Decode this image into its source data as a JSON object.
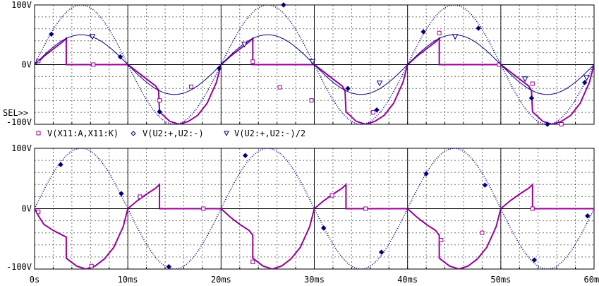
{
  "selection_marker": "SEL>>",
  "colors": {
    "trace1": "#990099",
    "trace2": "#00007f",
    "trace3": "#000080",
    "grid": "#000000",
    "axis": "#000000"
  },
  "chart_data": [
    {
      "type": "line",
      "xlabel": "",
      "ylabel": "",
      "xlim": [
        0,
        60
      ],
      "ylim": [
        -100,
        100
      ],
      "yticks": [
        {
          "v": 100,
          "label": "100V"
        },
        {
          "v": 0,
          "label": "0V"
        },
        {
          "v": -100,
          "label": "-100V"
        }
      ],
      "grid": true,
      "legend": "below plot",
      "series": [
        {
          "name": "V(X11:A,X11:K)",
          "marker": "square",
          "color": "#990099",
          "x": [
            0,
            0.5,
            1,
            2,
            3,
            3.4,
            3.4,
            6,
            9,
            10,
            11,
            12,
            13,
            13.3,
            13.4,
            14.5,
            15.5,
            16.5,
            17.5,
            18.5,
            19.5,
            20,
            21,
            22,
            23,
            23.4,
            23.4,
            26,
            29,
            30,
            31,
            32,
            33,
            33.3,
            33.4,
            34.5,
            35.5,
            36.5,
            37.5,
            38.5,
            39.5,
            40,
            41,
            42,
            43,
            43.4,
            43.4,
            46,
            49,
            50,
            51,
            52,
            53,
            53.3,
            53.4,
            54.5,
            55.5,
            56.5,
            57.5,
            58.5,
            59.5,
            60
          ],
          "y": [
            0,
            6,
            14,
            26,
            38,
            44,
            0,
            0,
            0,
            0,
            -12,
            -24,
            -36,
            -44,
            -79,
            -95,
            -100,
            -95,
            -85,
            -65,
            -30,
            0,
            14,
            26,
            38,
            44,
            0,
            0,
            0,
            0,
            -12,
            -24,
            -36,
            -44,
            -79,
            -95,
            -100,
            -95,
            -85,
            -65,
            -30,
            0,
            14,
            26,
            38,
            44,
            0,
            0,
            0,
            0,
            -12,
            -24,
            -36,
            -44,
            -79,
            -95,
            -100,
            -95,
            -85,
            -65,
            -30,
            0
          ],
          "markers": [
            [
              0.4,
              6
            ],
            [
              6.3,
              0
            ],
            [
              13.4,
              -60
            ],
            [
              16.8,
              -37
            ],
            [
              23.4,
              5
            ],
            [
              26.3,
              -38
            ],
            [
              29.7,
              -60
            ],
            [
              36.3,
              -80
            ],
            [
              43.4,
              53
            ],
            [
              49.8,
              0
            ],
            [
              53.4,
              -32
            ],
            [
              56.5,
              -100
            ]
          ]
        },
        {
          "name": "V(U2:+,U2:-)",
          "marker": "diamond",
          "color": "#00007f",
          "style": "dotted",
          "formula": "100*sin(2*pi*x/20)",
          "markers": [
            [
              1.8,
              51
            ],
            [
              9.2,
              13
            ],
            [
              13.4,
              -79
            ],
            [
              19.8,
              -6
            ],
            [
              26.7,
              100
            ],
            [
              33.6,
              -40
            ],
            [
              36.7,
              -76
            ],
            [
              41.7,
              55
            ],
            [
              47.6,
              61
            ],
            [
              53.3,
              -56
            ],
            [
              55.0,
              -100
            ],
            [
              59.0,
              -30
            ]
          ]
        },
        {
          "name": "V(U2:+,U2:-)/2",
          "marker": "triangle",
          "color": "#000080",
          "formula": "50*sin(2*pi*x/20)",
          "markers": [
            [
              6.2,
              47
            ],
            [
              22.5,
              34
            ],
            [
              29.8,
              5
            ],
            [
              37.0,
              -31
            ],
            [
              45.1,
              47
            ],
            [
              52.6,
              -24
            ],
            [
              59.2,
              -22
            ]
          ]
        }
      ]
    },
    {
      "type": "line",
      "xlabel": "",
      "ylabel": "",
      "xlim": [
        0,
        60
      ],
      "ylim": [
        -100,
        100
      ],
      "yticks": [
        {
          "v": 100,
          "label": "100V"
        },
        {
          "v": 0,
          "label": "0V"
        },
        {
          "v": -100,
          "label": "-100V"
        }
      ],
      "xticks": [
        {
          "v": 0,
          "label": "0s"
        },
        {
          "v": 10,
          "label": "10ms"
        },
        {
          "v": 20,
          "label": "20ms"
        },
        {
          "v": 30,
          "label": "30ms"
        },
        {
          "v": 40,
          "label": "40ms"
        },
        {
          "v": 50,
          "label": "50ms"
        },
        {
          "v": 60,
          "label": "60ms"
        }
      ],
      "grid": true,
      "series": [
        {
          "marker": "square",
          "color": "#990099",
          "x": [
            0,
            0.5,
            1,
            2,
            3,
            3.4,
            3.4,
            4.5,
            5.5,
            6.5,
            7.5,
            8.5,
            9.5,
            10,
            11,
            12,
            13,
            13.4,
            13.4,
            16,
            19,
            20,
            21,
            22,
            23,
            23.4,
            23.4,
            24.5,
            25.5,
            26.5,
            27.5,
            28.5,
            29.5,
            30,
            31,
            32,
            33,
            33.4,
            33.4,
            36,
            39,
            40,
            41,
            42,
            43,
            43.4,
            43.4,
            44.5,
            45.5,
            46.5,
            47.5,
            48.5,
            49.5,
            50,
            51,
            52,
            53,
            53.4,
            53.4,
            56,
            59,
            60
          ],
          "y": [
            0,
            -14,
            -26,
            -36,
            -44,
            -47,
            -82,
            -95,
            -100,
            -95,
            -83,
            -64,
            -30,
            0,
            13,
            24,
            34,
            40,
            0,
            0,
            0,
            0,
            -14,
            -26,
            -36,
            -44,
            -82,
            -95,
            -100,
            -95,
            -83,
            -64,
            -30,
            0,
            13,
            24,
            34,
            40,
            0,
            0,
            0,
            0,
            -14,
            -26,
            -36,
            -44,
            -82,
            -95,
            -100,
            -95,
            -83,
            -64,
            -30,
            0,
            13,
            24,
            34,
            40,
            0,
            0,
            0,
            0
          ],
          "markers": [
            [
              0.4,
              -5
            ],
            [
              6.1,
              -95
            ],
            [
              11.3,
              20
            ],
            [
              18.1,
              0
            ],
            [
              23.4,
              -88
            ],
            [
              31.9,
              22
            ],
            [
              35.5,
              0
            ],
            [
              43.6,
              -52
            ],
            [
              48.0,
              -40
            ],
            [
              53.4,
              0
            ]
          ]
        },
        {
          "marker": "diamond",
          "color": "#00007f",
          "style": "dotted",
          "formula": "100*sin(2*pi*x/20)",
          "markers": [
            [
              2.8,
              73
            ],
            [
              9.3,
              25
            ],
            [
              14.4,
              -96
            ],
            [
              22.6,
              88
            ],
            [
              31.0,
              -32
            ],
            [
              37.2,
              -72
            ],
            [
              42.0,
              58
            ],
            [
              48.3,
              39
            ],
            [
              53.6,
              -85
            ],
            [
              59.3,
              -12
            ]
          ]
        }
      ]
    }
  ],
  "legend": [
    {
      "label": "V(X11:A,X11:K)",
      "icon": "square-marker-icon",
      "color": "#990099"
    },
    {
      "label": "V(U2:+,U2:-)",
      "icon": "diamond-marker-icon",
      "color": "#00007f"
    },
    {
      "label": "V(U2:+,U2:-)/2",
      "icon": "triangle-marker-icon",
      "color": "#000080"
    }
  ]
}
